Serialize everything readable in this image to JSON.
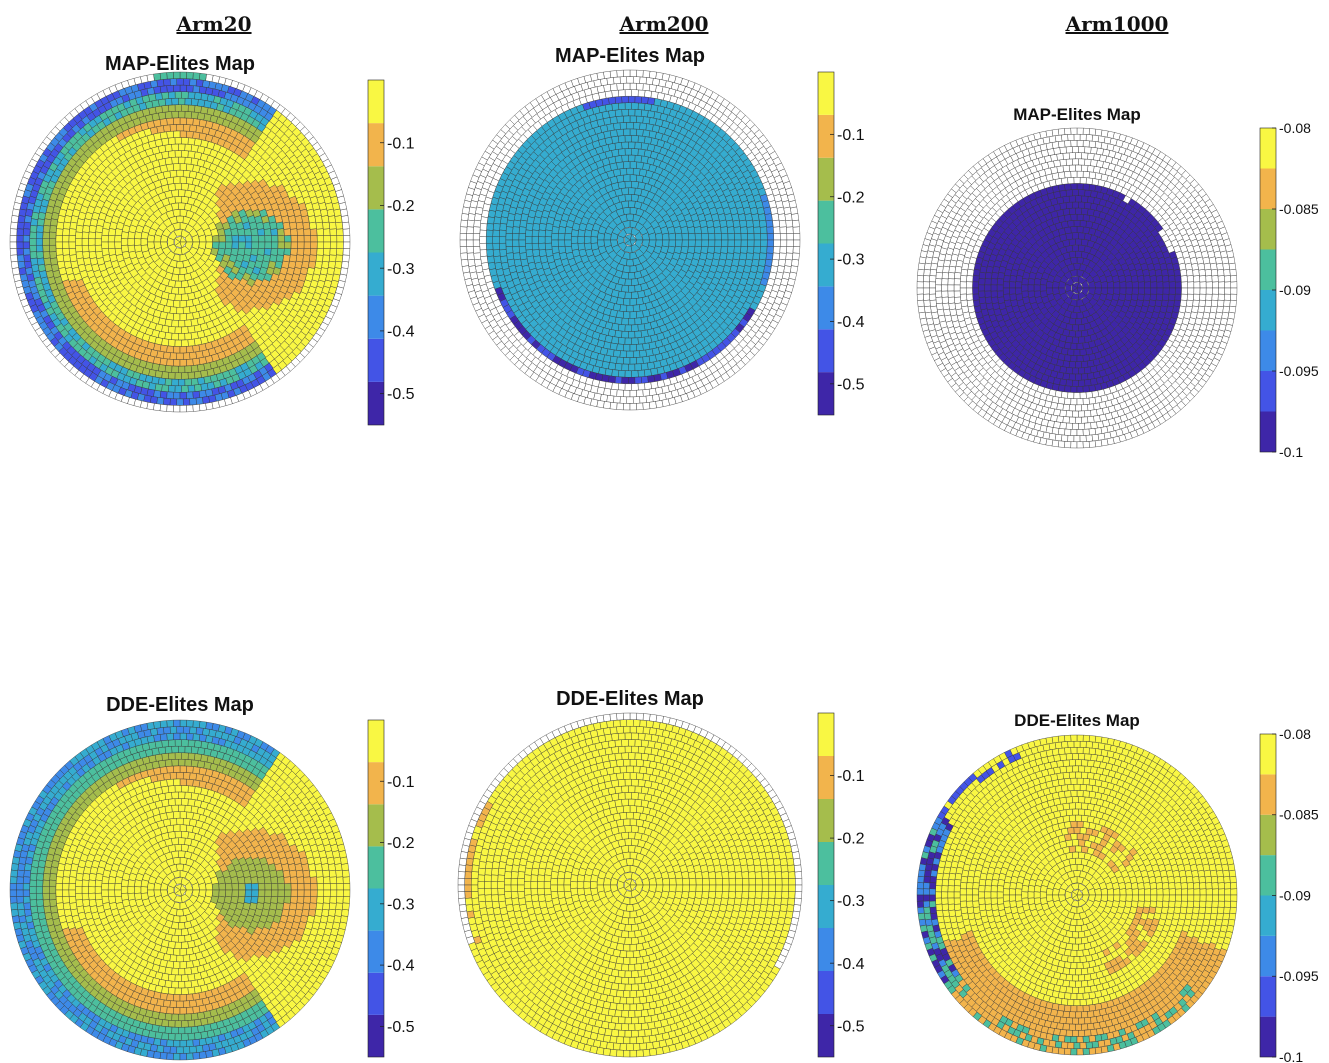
{
  "column_titles": [
    "Arm20",
    "Arm200",
    "Arm1000"
  ],
  "colors": {
    "palette_arm": [
      "#3e26a8",
      "#4354e6",
      "#3d8ae8",
      "#35acd0",
      "#4cbf9e",
      "#a5bd4c",
      "#f2b44c",
      "#f9f743"
    ],
    "palette_arm1000": [
      "#3e26a8",
      "#4354e6",
      "#3d8ae8",
      "#35acd0",
      "#4cbf9e",
      "#a5bd4c",
      "#f2b44c",
      "#f9f743"
    ],
    "empty_cell": "#ffffff",
    "cell_border": "#333333"
  },
  "chart_data": [
    {
      "type": "heatmap",
      "title": "MAP-Elites Map",
      "layout": "polar-voronoi",
      "colorbar": {
        "ticks": [
          "-0.1",
          "-0.2",
          "-0.3",
          "-0.4",
          "-0.5"
        ],
        "tick_values": [
          -0.1,
          -0.2,
          -0.3,
          -0.4,
          -0.5
        ],
        "range": [
          -0.55,
          0
        ]
      },
      "coverage": {
        "fill_fraction": 0.96,
        "pattern": "arm20"
      },
      "values_note": ""
    },
    {
      "type": "heatmap",
      "title": "MAP-Elites Map",
      "layout": "polar-voronoi",
      "colorbar": {
        "ticks": [
          "-0.1",
          "-0.2",
          "-0.3",
          "-0.4",
          "-0.5"
        ],
        "tick_values": [
          -0.1,
          -0.2,
          -0.3,
          -0.4,
          -0.5
        ],
        "range": [
          -0.55,
          0
        ]
      },
      "coverage": {
        "fill_fraction": 0.83,
        "pattern": "uniform-cyan"
      }
    },
    {
      "type": "heatmap",
      "title": "MAP-Elites Map",
      "layout": "polar-voronoi",
      "colorbar": {
        "ticks": [
          "-0.08",
          "-0.085",
          "-0.09",
          "-0.095",
          "-0.1"
        ],
        "tick_values": [
          -0.08,
          -0.085,
          -0.09,
          -0.095,
          -0.1
        ],
        "range": [
          -0.1,
          -0.08
        ]
      },
      "coverage": {
        "fill_fraction": 0.64,
        "pattern": "uniform-dark"
      }
    },
    {
      "type": "heatmap",
      "title": "DDE-Elites Map",
      "layout": "polar-voronoi",
      "colorbar": {
        "ticks": [
          "-0.1",
          "-0.2",
          "-0.3",
          "-0.4",
          "-0.5"
        ],
        "tick_values": [
          -0.1,
          -0.2,
          -0.3,
          -0.4,
          -0.5
        ],
        "range": [
          -0.55,
          0
        ]
      },
      "coverage": {
        "fill_fraction": 0.98,
        "pattern": "arm20-dde"
      }
    },
    {
      "type": "heatmap",
      "title": "DDE-Elites Map",
      "layout": "polar-voronoi",
      "colorbar": {
        "ticks": [
          "-0.1",
          "-0.2",
          "-0.3",
          "-0.4",
          "-0.5"
        ],
        "tick_values": [
          -0.1,
          -0.2,
          -0.3,
          -0.4,
          -0.5
        ],
        "range": [
          -0.55,
          0
        ]
      },
      "coverage": {
        "fill_fraction": 0.97,
        "pattern": "uniform-yellow"
      }
    },
    {
      "type": "heatmap",
      "title": "DDE-Elites Map",
      "layout": "polar-voronoi",
      "colorbar": {
        "ticks": [
          "-0.08",
          "-0.085",
          "-0.09",
          "-0.095",
          "-0.1"
        ],
        "tick_values": [
          -0.08,
          -0.085,
          -0.09,
          -0.095,
          -0.1
        ],
        "range": [
          -0.1,
          -0.08
        ]
      },
      "coverage": {
        "fill_fraction": 0.95,
        "pattern": "arm1000-dde"
      }
    }
  ]
}
